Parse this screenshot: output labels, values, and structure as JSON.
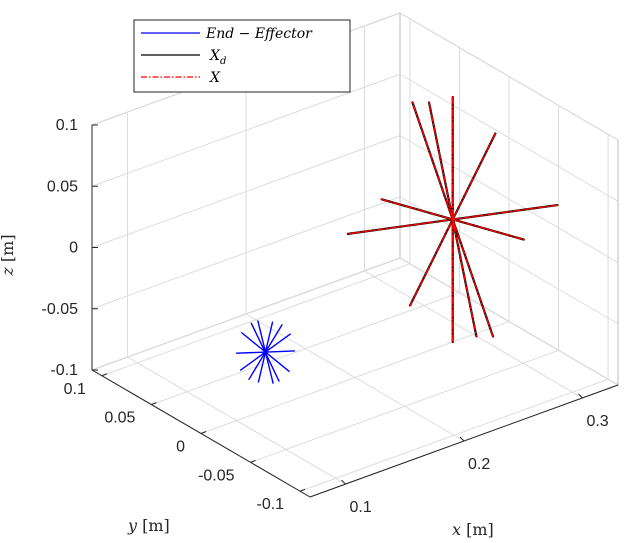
{
  "chart_data": {
    "type": "line",
    "title": "",
    "plot_kind": "3d-line",
    "grid": true,
    "legend_position": "top-left",
    "axes": {
      "x": {
        "label": "x",
        "unit": "[m]",
        "ticks": [
          "0.1",
          "0.2",
          "0.3"
        ],
        "range": [
          0.07,
          0.33
        ]
      },
      "y": {
        "label": "y",
        "unit": "[m]",
        "ticks": [
          "-0.1",
          "-0.05",
          "0",
          "0.05",
          "0.1"
        ],
        "range": [
          -0.11,
          0.11
        ]
      },
      "z": {
        "label": "z",
        "unit": "[m]",
        "ticks": [
          "-0.1",
          "-0.05",
          "0",
          "0.05",
          "0.1"
        ],
        "range": [
          -0.1,
          0.1
        ]
      }
    },
    "series": [
      {
        "name": "End − Effector",
        "color": "#0000ff",
        "style": "solid",
        "center": [
          0.1215,
          -0.0035,
          -0.05
        ],
        "segments": [
          [
            [
              0.118,
              0.0,
              -0.025
            ],
            [
              0.125,
              -0.007,
              -0.075
            ]
          ],
          [
            [
              0.1125,
              0.0,
              -0.025
            ],
            [
              0.13,
              -0.007,
              -0.075
            ]
          ],
          [
            [
              0.1045,
              0.0,
              -0.03
            ],
            [
              0.1385,
              -0.007,
              -0.07
            ]
          ],
          [
            [
              0.1,
              0.0,
              -0.045
            ],
            [
              0.143,
              -0.007,
              -0.055
            ]
          ],
          [
            [
              0.1035,
              0.0,
              -0.06
            ],
            [
              0.1395,
              -0.007,
              -0.04
            ]
          ],
          [
            [
              0.1105,
              0.0,
              -0.07
            ],
            [
              0.1325,
              -0.007,
              -0.03
            ]
          ],
          [
            [
              0.1185,
              0.0,
              -0.075
            ],
            [
              0.1245,
              -0.007,
              -0.025
            ]
          ]
        ]
      },
      {
        "name": "X_d",
        "color": "#000000",
        "style": "solid",
        "center": [
          0.2825,
          0.0,
          0.0
        ],
        "segments": [
          [
            [
              0.2625,
              0.0,
              0.1025
            ],
            [
              0.3025,
              0.0,
              -0.1025
            ]
          ],
          [
            [
              0.2825,
              0.0,
              0.1
            ],
            [
              0.2825,
              0.0,
              -0.1
            ]
          ],
          [
            [
              0.2225,
              0.0,
              0.0375
            ],
            [
              0.3425,
              0.0,
              -0.0375
            ]
          ],
          [
            [
              0.3185,
              0.0,
              0.0575
            ],
            [
              0.2465,
              0.0,
              -0.0575
            ]
          ],
          [
            [
              0.3525,
              -0.022,
              -0.0025
            ],
            [
              0.2125,
              0.022,
              0.0025
            ]
          ],
          [
            [
              0.3165,
              0.0,
              -0.1075
            ],
            [
              0.2485,
              0.0,
              0.1075
            ]
          ]
        ]
      },
      {
        "name": "X",
        "color": "#ff0000",
        "style": "dash-dot",
        "center": [
          0.2825,
          0.0,
          0.0
        ],
        "segments": [
          [
            [
              0.2625,
              0.0,
              0.1025
            ],
            [
              0.3025,
              0.0,
              -0.1025
            ]
          ],
          [
            [
              0.2825,
              0.0,
              0.1
            ],
            [
              0.2825,
              0.0,
              -0.1
            ]
          ],
          [
            [
              0.2225,
              0.0,
              0.0375
            ],
            [
              0.3425,
              0.0,
              -0.0375
            ]
          ],
          [
            [
              0.3185,
              0.0,
              0.0575
            ],
            [
              0.2465,
              0.0,
              -0.0575
            ]
          ],
          [
            [
              0.3525,
              -0.022,
              -0.0025
            ],
            [
              0.2125,
              0.022,
              0.0025
            ]
          ],
          [
            [
              0.3165,
              0.0,
              -0.1075
            ],
            [
              0.2485,
              0.0,
              0.1075
            ]
          ]
        ]
      }
    ],
    "legend": {
      "entries": [
        {
          "series": 0,
          "label": "End − Effector"
        },
        {
          "series": 1,
          "label": "X",
          "subscript": "d"
        },
        {
          "series": 2,
          "label": "X"
        }
      ]
    }
  }
}
